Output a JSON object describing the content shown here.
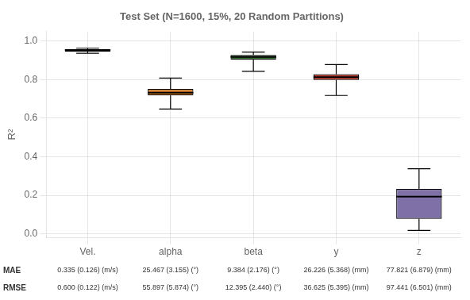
{
  "chart_data": {
    "type": "box",
    "title": "Test Set (N=1600, 15%, 20 Random Partitions)",
    "ylabel": "R²",
    "categories": [
      "Vel.",
      "alpha",
      "beta",
      "y",
      "z"
    ],
    "colors": [
      "#4472c4",
      "#d47d2e",
      "#3a7c3a",
      "#c0392b",
      "#8070a8"
    ],
    "values": [
      {
        "low": 0.937,
        "q1": 0.945,
        "median": 0.953,
        "q3": 0.958,
        "high": 0.963
      },
      {
        "low": 0.648,
        "q1": 0.718,
        "median": 0.733,
        "q3": 0.752,
        "high": 0.808
      },
      {
        "low": 0.843,
        "q1": 0.903,
        "median": 0.918,
        "q3": 0.928,
        "high": 0.943
      },
      {
        "low": 0.718,
        "q1": 0.798,
        "median": 0.813,
        "q3": 0.828,
        "high": 0.878
      },
      {
        "low": 0.018,
        "q1": 0.078,
        "median": 0.193,
        "q3": 0.233,
        "high": 0.338
      }
    ],
    "ylim": [
      -0.02,
      1.05
    ],
    "yticks": [
      {
        "value": 0,
        "label": "0.0"
      },
      0.2,
      0.4,
      0.6,
      0.8,
      {
        "value": 1,
        "label": "1.0"
      }
    ],
    "grid": true,
    "rows": [
      {
        "name": "MAE",
        "values": [
          "0.335 (0.126) (m/s)",
          "25.467 (3.155) (°)",
          "9.384 (2.176) (°)",
          "26.226 (5.368) (mm)",
          "77.821 (6.879) (mm)"
        ]
      },
      {
        "name": "RMSE",
        "values": [
          "0.600 (0.122) (m/s)",
          "55.897 (5.874) (°)",
          "12.395 (2.440) (°)",
          "36.625 (5.395) (mm)",
          "97.441 (6.501) (mm)"
        ]
      }
    ]
  }
}
